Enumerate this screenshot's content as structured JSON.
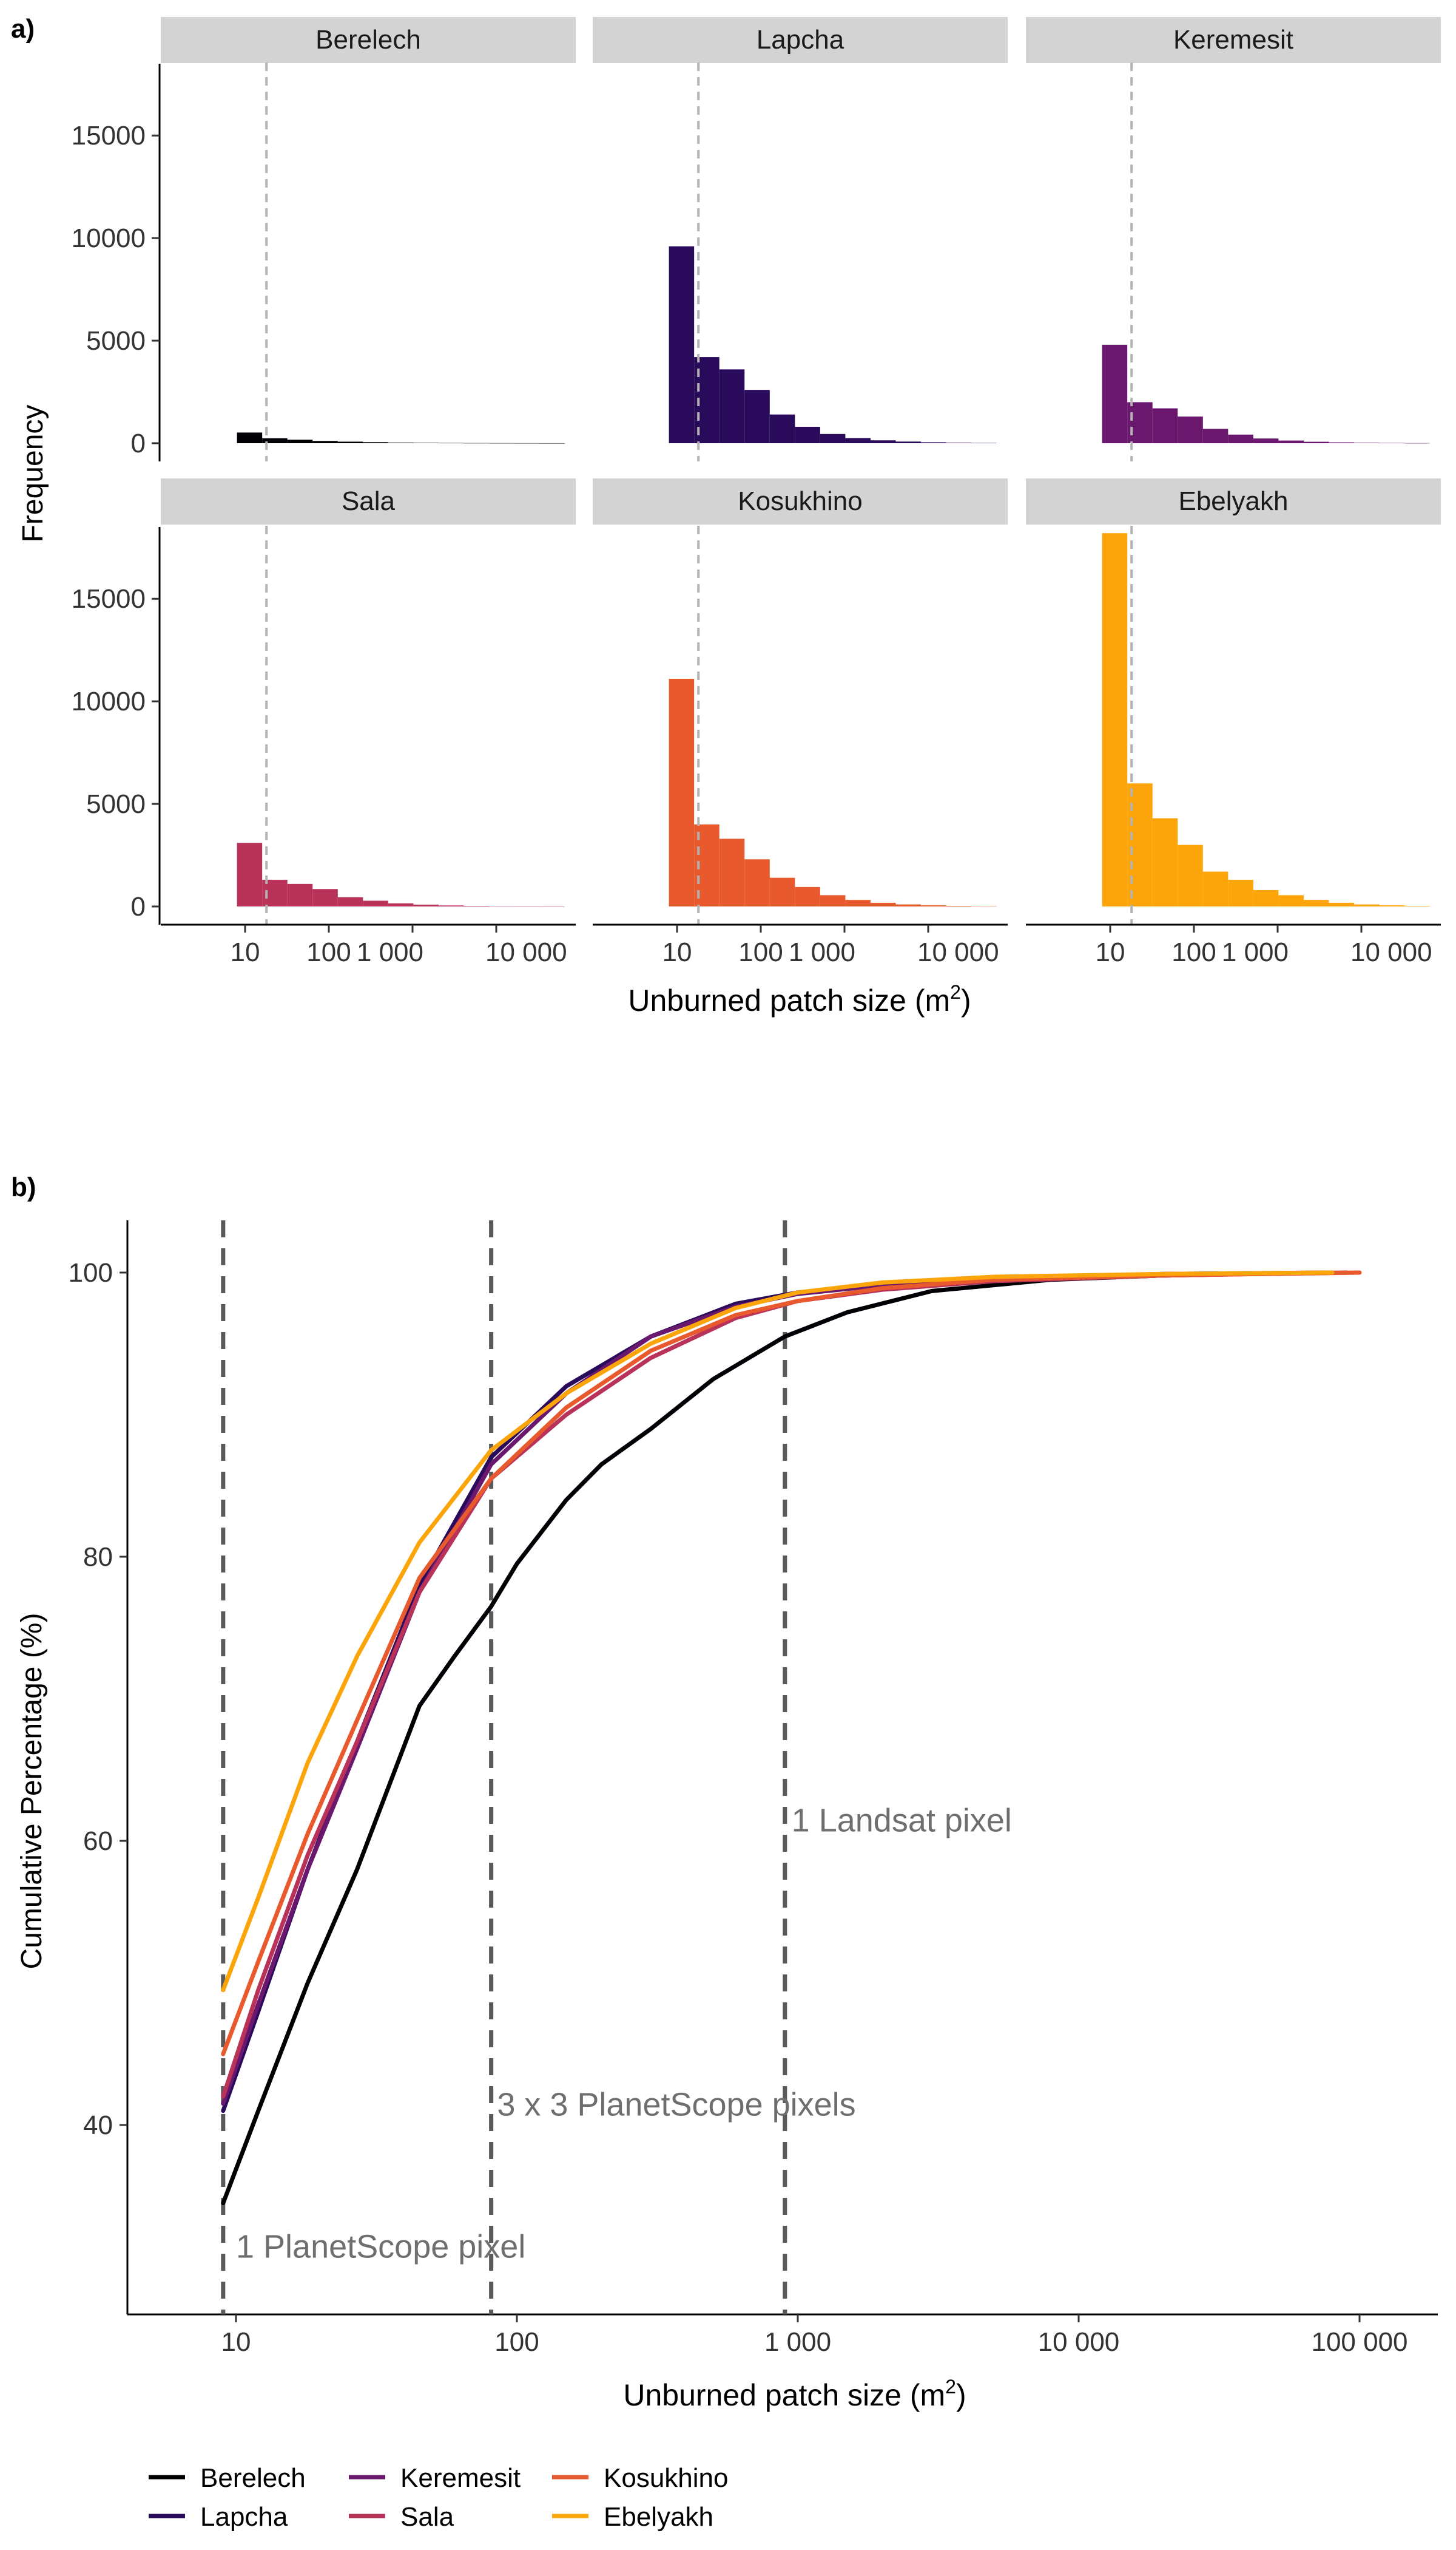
{
  "panel_a": {
    "tag": "a)",
    "ylabel": "Frequency",
    "xlabel_main": "Unburned patch size (m",
    "xlabel_sup": "2",
    "xlabel_close": ")",
    "y_ticks": [
      "0",
      "5000",
      "10000",
      "15000"
    ],
    "x_ticks": [
      "10",
      "100",
      "1 000",
      "10 000"
    ]
  },
  "panel_b": {
    "tag": "b)",
    "ylabel": "Cumulative Percentage (%)",
    "xlabel_main": "Unburned patch size (m",
    "xlabel_sup": "2",
    "xlabel_close": ")",
    "y_ticks": [
      "40",
      "60",
      "80",
      "100"
    ],
    "x_ticks": [
      "10",
      "100",
      "1 000",
      "10 000",
      "100 000"
    ],
    "annotations": [
      "1 PlanetScope pixel",
      "3 x 3 PlanetScope pixels",
      "1 Landsat pixel"
    ]
  },
  "legend": {
    "items": [
      {
        "label": "Berelech",
        "color": "#000004"
      },
      {
        "label": "Lapcha",
        "color": "#2a0b5b"
      },
      {
        "label": "Keremesit",
        "color": "#6a176e"
      },
      {
        "label": "Sala",
        "color": "#b8325a"
      },
      {
        "label": "Kosukhino",
        "color": "#e85a2d"
      },
      {
        "label": "Ebelyakh",
        "color": "#fca50a"
      }
    ]
  },
  "chart_data": [
    {
      "type": "bar",
      "title": "",
      "xlabel": "Unburned patch size (m2)",
      "ylabel": "Frequency",
      "x_scale": "log10",
      "ylim": [
        0,
        18500
      ],
      "reference_line_x": 18,
      "bin_lower_edges": [
        8,
        16,
        32,
        64,
        128,
        256,
        512,
        1024,
        2048,
        4096,
        8192,
        16384,
        32768
      ],
      "bin_width_log2": 1,
      "facets": [
        {
          "name": "Berelech",
          "color": "#000004",
          "values": [
            520,
            240,
            170,
            110,
            75,
            50,
            30,
            20,
            12,
            8,
            5,
            3,
            2
          ]
        },
        {
          "name": "Lapcha",
          "color": "#2a0b5b",
          "values": [
            9600,
            4200,
            3600,
            2600,
            1400,
            800,
            450,
            250,
            140,
            80,
            45,
            25,
            12
          ]
        },
        {
          "name": "Keremesit",
          "color": "#6a176e",
          "values": [
            4800,
            2000,
            1700,
            1300,
            700,
            420,
            230,
            130,
            70,
            40,
            22,
            12,
            6
          ]
        },
        {
          "name": "Sala",
          "color": "#b8325a",
          "values": [
            3100,
            1300,
            1100,
            850,
            450,
            280,
            150,
            90,
            50,
            28,
            15,
            8,
            4
          ]
        },
        {
          "name": "Kosukhino",
          "color": "#e85a2d",
          "values": [
            11100,
            4000,
            3300,
            2300,
            1400,
            950,
            550,
            320,
            180,
            100,
            55,
            30,
            15
          ]
        },
        {
          "name": "Ebelyakh",
          "color": "#fca50a",
          "values": [
            18200,
            6000,
            4300,
            3000,
            1700,
            1300,
            800,
            550,
            320,
            180,
            100,
            55,
            25
          ]
        }
      ]
    },
    {
      "type": "line",
      "title": "",
      "xlabel": "Unburned patch size (m2)",
      "ylabel": "Cumulative Percentage (%)",
      "x_scale": "log10",
      "xlim": [
        5.5,
        200000
      ],
      "ylim": [
        29,
        103.5
      ],
      "reference_lines_x": [
        9,
        81,
        900
      ],
      "series": [
        {
          "name": "Berelech",
          "color": "#000004",
          "x": [
            9,
            12,
            18,
            27,
            45,
            60,
            81,
            100,
            150,
            200,
            300,
            500,
            900,
            1500,
            3000,
            8000,
            20000,
            80000
          ],
          "y": [
            34.5,
            41,
            50,
            58,
            69.5,
            73,
            76.5,
            79.5,
            84,
            86.5,
            89,
            92.5,
            95.5,
            97.2,
            98.7,
            99.5,
            99.8,
            100
          ]
        },
        {
          "name": "Lapcha",
          "color": "#2a0b5b",
          "x": [
            9,
            12,
            18,
            27,
            45,
            81,
            150,
            300,
            600,
            1000,
            2000,
            5000,
            20000,
            80000
          ],
          "y": [
            41,
            48,
            58,
            67,
            78,
            87,
            92,
            95.5,
            97.8,
            98.6,
            99.2,
            99.6,
            99.9,
            100
          ]
        },
        {
          "name": "Keremesit",
          "color": "#6a176e",
          "x": [
            9,
            12,
            18,
            27,
            45,
            81,
            150,
            300,
            600,
            1000,
            2000,
            5000,
            20000,
            80000
          ],
          "y": [
            41.5,
            48.5,
            58,
            66.5,
            77.5,
            86.5,
            91.5,
            95.5,
            97.6,
            98.5,
            99.1,
            99.5,
            99.8,
            100
          ]
        },
        {
          "name": "Sala",
          "color": "#b8325a",
          "x": [
            9,
            12,
            18,
            27,
            45,
            81,
            150,
            300,
            600,
            1000,
            2000,
            5000,
            20000,
            90000
          ],
          "y": [
            42,
            49.5,
            59,
            67,
            77.5,
            85.5,
            90,
            94,
            96.8,
            98,
            98.8,
            99.4,
            99.8,
            100
          ]
        },
        {
          "name": "Kosukhino",
          "color": "#e85a2d",
          "x": [
            9,
            12,
            18,
            27,
            45,
            81,
            150,
            300,
            600,
            1000,
            2000,
            5000,
            20000,
            100000
          ],
          "y": [
            45,
            51.5,
            60.5,
            68.5,
            78.5,
            85.5,
            90.5,
            94.5,
            97,
            98,
            98.9,
            99.5,
            99.8,
            100
          ]
        },
        {
          "name": "Ebelyakh",
          "color": "#fca50a",
          "x": [
            9,
            12,
            18,
            27,
            45,
            81,
            150,
            300,
            600,
            1000,
            2000,
            5000,
            20000,
            80000
          ],
          "y": [
            49.5,
            56,
            65.5,
            73,
            81,
            87.5,
            91.5,
            95,
            97.5,
            98.6,
            99.3,
            99.7,
            99.9,
            100
          ]
        }
      ],
      "annotations": [
        {
          "text": "1 PlanetScope pixel",
          "x": 10,
          "y": 31
        },
        {
          "text": "3 x 3 PlanetScope pixels",
          "x": 85,
          "y": 41
        },
        {
          "text": "1 Landsat pixel",
          "x": 950,
          "y": 61
        }
      ]
    }
  ]
}
